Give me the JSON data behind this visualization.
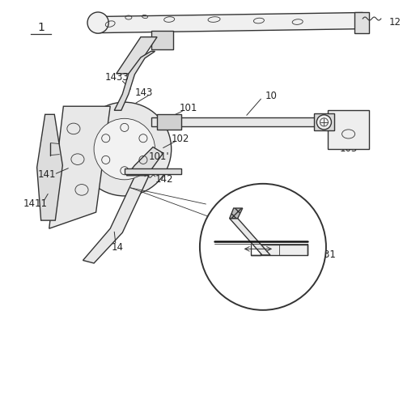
{
  "fig_width": 5.19,
  "fig_height": 5.06,
  "dpi": 100,
  "bg_color": "#ffffff",
  "line_color": "#333333",
  "line_width": 1.0,
  "thin_line": 0.6
}
